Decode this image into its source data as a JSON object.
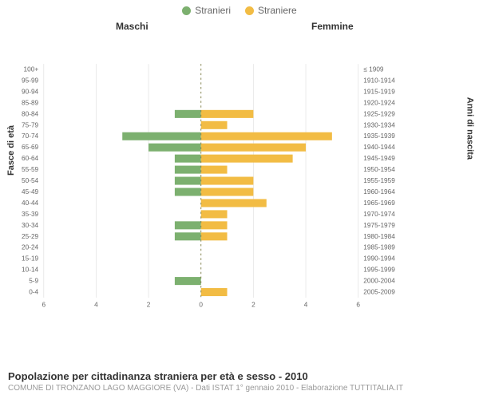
{
  "legend": {
    "male_label": "Stranieri",
    "female_label": "Straniere",
    "male_color": "#7cb06f",
    "female_color": "#f2bc44"
  },
  "section_titles": {
    "maschi": "Maschi",
    "femmine": "Femmine"
  },
  "axes": {
    "y_left_title": "Fasce di età",
    "y_right_title": "Anni di nascita",
    "x_ticks": [
      6,
      4,
      2,
      0,
      2,
      4,
      6
    ],
    "x_max": 6
  },
  "chart": {
    "background_color": "#ffffff",
    "grid_color": "#e6e6e6",
    "zero_line_color": "#888855",
    "zero_line_dash": "3 4",
    "rows": [
      {
        "age": "100+",
        "birth": "≤ 1909",
        "m": 0,
        "f": 0
      },
      {
        "age": "95-99",
        "birth": "1910-1914",
        "m": 0,
        "f": 0
      },
      {
        "age": "90-94",
        "birth": "1915-1919",
        "m": 0,
        "f": 0
      },
      {
        "age": "85-89",
        "birth": "1920-1924",
        "m": 0,
        "f": 0
      },
      {
        "age": "80-84",
        "birth": "1925-1929",
        "m": 1,
        "f": 2
      },
      {
        "age": "75-79",
        "birth": "1930-1934",
        "m": 0,
        "f": 1
      },
      {
        "age": "70-74",
        "birth": "1935-1939",
        "m": 3,
        "f": 5
      },
      {
        "age": "65-69",
        "birth": "1940-1944",
        "m": 2,
        "f": 4
      },
      {
        "age": "60-64",
        "birth": "1945-1949",
        "m": 1,
        "f": 3.5
      },
      {
        "age": "55-59",
        "birth": "1950-1954",
        "m": 1,
        "f": 1
      },
      {
        "age": "50-54",
        "birth": "1955-1959",
        "m": 1,
        "f": 2
      },
      {
        "age": "45-49",
        "birth": "1960-1964",
        "m": 1,
        "f": 2
      },
      {
        "age": "40-44",
        "birth": "1965-1969",
        "m": 0,
        "f": 2.5
      },
      {
        "age": "35-39",
        "birth": "1970-1974",
        "m": 0,
        "f": 1
      },
      {
        "age": "30-34",
        "birth": "1975-1979",
        "m": 1,
        "f": 1
      },
      {
        "age": "25-29",
        "birth": "1980-1984",
        "m": 1,
        "f": 1
      },
      {
        "age": "20-24",
        "birth": "1985-1989",
        "m": 0,
        "f": 0
      },
      {
        "age": "15-19",
        "birth": "1990-1994",
        "m": 0,
        "f": 0
      },
      {
        "age": "10-14",
        "birth": "1995-1999",
        "m": 0,
        "f": 0
      },
      {
        "age": "5-9",
        "birth": "2000-2004",
        "m": 1,
        "f": 0
      },
      {
        "age": "0-4",
        "birth": "2005-2009",
        "m": 0,
        "f": 1
      }
    ]
  },
  "footer": {
    "title": "Popolazione per cittadinanza straniera per età e sesso - 2010",
    "sub": "COMUNE DI TRONZANO LAGO MAGGIORE (VA) - Dati ISTAT 1° gennaio 2010 - Elaborazione TUTTITALIA.IT"
  }
}
